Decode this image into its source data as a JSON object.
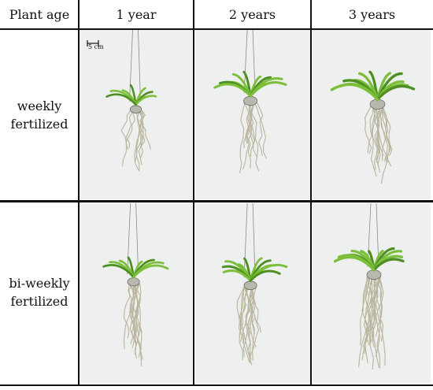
{
  "header": {
    "corner": "Plant age",
    "columns": [
      "1 year",
      "2 years",
      "3 years"
    ]
  },
  "rows": [
    {
      "line1": "weekly",
      "line2": "fertilized"
    },
    {
      "line1": "bi-weekly",
      "line2": "fertilized"
    }
  ],
  "scale_bar": {
    "label": "5 cm"
  },
  "colors": {
    "leaf": "#7cbf3a",
    "leaf_dark": "#4e8f22",
    "root": "#b9b59e",
    "background": "#eeefef"
  }
}
